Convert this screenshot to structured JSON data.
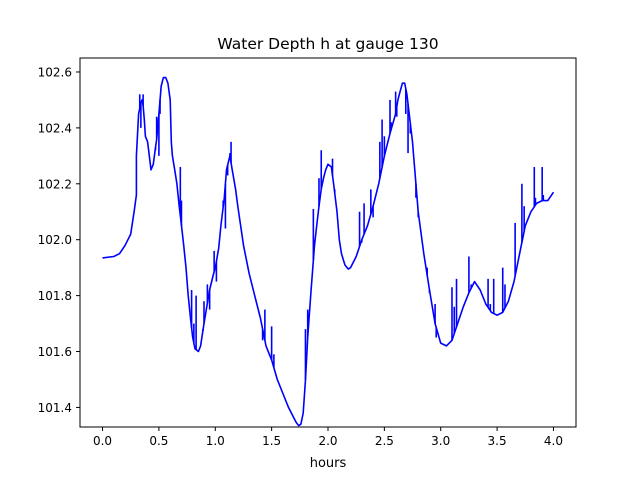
{
  "chart_data": {
    "type": "line",
    "title": "Water Depth h at gauge 130",
    "xlabel": "hours",
    "ylabel": "",
    "xlim": [
      -0.2,
      4.2
    ],
    "ylim": [
      101.33,
      102.65
    ],
    "xticks": [
      0.0,
      0.5,
      1.0,
      1.5,
      2.0,
      2.5,
      3.0,
      3.5,
      4.0
    ],
    "xtick_labels": [
      "0.0",
      "0.5",
      "1.0",
      "1.5",
      "2.0",
      "2.5",
      "3.0",
      "3.5",
      "4.0"
    ],
    "yticks": [
      101.4,
      101.6,
      101.8,
      102.0,
      102.2,
      102.4,
      102.6
    ],
    "ytick_labels": [
      "101.4",
      "101.6",
      "101.8",
      "102.0",
      "102.2",
      "102.4",
      "102.6"
    ],
    "grid": false,
    "line_color": "#0000ff",
    "series": [
      {
        "x": [
          0.0,
          0.1,
          0.15,
          0.2,
          0.25,
          0.28,
          0.3,
          0.3,
          0.32,
          0.34,
          0.35,
          0.36,
          0.37,
          0.38,
          0.4,
          0.43,
          0.45,
          0.47,
          0.48,
          0.5,
          0.52,
          0.54,
          0.56,
          0.58,
          0.6,
          0.61,
          0.62,
          0.64,
          0.66,
          0.68,
          0.7,
          0.72,
          0.74,
          0.76,
          0.78,
          0.8,
          0.82,
          0.85,
          0.87,
          0.9,
          0.92,
          0.95,
          0.98,
          1.0,
          1.03,
          1.05,
          1.08,
          1.1,
          1.13,
          1.15,
          1.18,
          1.2,
          1.25,
          1.3,
          1.35,
          1.4,
          1.45,
          1.5,
          1.55,
          1.6,
          1.65,
          1.7,
          1.72,
          1.74,
          1.76,
          1.78,
          1.8,
          1.82,
          1.85,
          1.88,
          1.9,
          1.92,
          1.94,
          1.96,
          1.98,
          2.0,
          2.03,
          2.05,
          2.08,
          2.1,
          2.12,
          2.15,
          2.18,
          2.2,
          2.25,
          2.3,
          2.35,
          2.4,
          2.45,
          2.5,
          2.55,
          2.6,
          2.62,
          2.64,
          2.66,
          2.68,
          2.7,
          2.72,
          2.75,
          2.8,
          2.85,
          2.9,
          2.95,
          3.0,
          3.05,
          3.1,
          3.15,
          3.2,
          3.25,
          3.3,
          3.35,
          3.4,
          3.45,
          3.5,
          3.55,
          3.6,
          3.65,
          3.7,
          3.75,
          3.8,
          3.85,
          3.9,
          3.95,
          4.0
        ],
        "y": [
          101.935,
          101.94,
          101.95,
          101.98,
          102.02,
          102.1,
          102.16,
          102.3,
          102.45,
          102.49,
          102.5,
          102.48,
          102.43,
          102.37,
          102.35,
          102.25,
          102.27,
          102.33,
          102.36,
          102.45,
          102.55,
          102.58,
          102.58,
          102.56,
          102.5,
          102.35,
          102.3,
          102.25,
          102.2,
          102.12,
          102.05,
          101.98,
          101.9,
          101.8,
          101.72,
          101.65,
          101.61,
          101.6,
          101.62,
          101.7,
          101.75,
          101.82,
          101.87,
          101.9,
          101.97,
          102.05,
          102.15,
          102.25,
          102.3,
          102.25,
          102.18,
          102.12,
          101.98,
          101.88,
          101.8,
          101.72,
          101.62,
          101.57,
          101.5,
          101.45,
          101.4,
          101.36,
          101.345,
          101.335,
          101.34,
          101.38,
          101.5,
          101.65,
          101.82,
          101.98,
          102.05,
          102.12,
          102.18,
          102.22,
          102.25,
          102.27,
          102.26,
          102.2,
          102.1,
          102.0,
          101.95,
          101.91,
          101.895,
          101.9,
          101.94,
          102.0,
          102.05,
          102.12,
          102.2,
          102.3,
          102.38,
          102.45,
          102.5,
          102.53,
          102.56,
          102.56,
          102.52,
          102.45,
          102.35,
          102.1,
          101.95,
          101.82,
          101.7,
          101.63,
          101.62,
          101.64,
          101.7,
          101.76,
          101.81,
          101.85,
          101.82,
          101.77,
          101.74,
          101.73,
          101.74,
          101.78,
          101.85,
          101.95,
          102.05,
          102.1,
          102.13,
          102.14,
          102.14,
          102.17
        ]
      }
    ],
    "spikes": [
      [
        0.33,
        102.52
      ],
      [
        0.34,
        102.4
      ],
      [
        0.36,
        102.52
      ],
      [
        0.47,
        102.32
      ],
      [
        0.48,
        102.44
      ],
      [
        0.5,
        102.3
      ],
      [
        0.51,
        102.45
      ],
      [
        0.69,
        102.26
      ],
      [
        0.7,
        102.14
      ],
      [
        0.79,
        101.82
      ],
      [
        0.81,
        101.7
      ],
      [
        0.83,
        101.8
      ],
      [
        0.89,
        101.68
      ],
      [
        0.9,
        101.78
      ],
      [
        0.93,
        101.84
      ],
      [
        0.95,
        101.75
      ],
      [
        0.99,
        101.96
      ],
      [
        1.01,
        101.85
      ],
      [
        1.07,
        102.14
      ],
      [
        1.09,
        102.04
      ],
      [
        1.11,
        102.23
      ],
      [
        1.13,
        102.31
      ],
      [
        1.14,
        102.35
      ],
      [
        1.42,
        101.64
      ],
      [
        1.44,
        101.75
      ],
      [
        1.5,
        101.69
      ],
      [
        1.52,
        101.59
      ],
      [
        1.8,
        101.68
      ],
      [
        1.82,
        101.75
      ],
      [
        1.87,
        102.11
      ],
      [
        1.88,
        102.0
      ],
      [
        1.92,
        102.22
      ],
      [
        1.94,
        102.32
      ],
      [
        2.04,
        102.29
      ],
      [
        2.06,
        102.18
      ],
      [
        2.28,
        102.1
      ],
      [
        2.3,
        101.99
      ],
      [
        2.32,
        102.13
      ],
      [
        2.38,
        102.18
      ],
      [
        2.4,
        102.08
      ],
      [
        2.46,
        102.35
      ],
      [
        2.48,
        102.43
      ],
      [
        2.5,
        102.37
      ],
      [
        2.55,
        102.5
      ],
      [
        2.56,
        102.42
      ],
      [
        2.6,
        102.53
      ],
      [
        2.61,
        102.44
      ],
      [
        2.69,
        102.45
      ],
      [
        2.71,
        102.31
      ],
      [
        2.73,
        102.38
      ],
      [
        2.78,
        102.15
      ],
      [
        2.8,
        102.08
      ],
      [
        2.88,
        101.9
      ],
      [
        2.9,
        101.81
      ],
      [
        2.95,
        101.77
      ],
      [
        2.96,
        101.65
      ],
      [
        3.1,
        101.83
      ],
      [
        3.12,
        101.76
      ],
      [
        3.14,
        101.86
      ],
      [
        3.25,
        101.94
      ],
      [
        3.27,
        101.84
      ],
      [
        3.42,
        101.86
      ],
      [
        3.44,
        101.77
      ],
      [
        3.47,
        101.86
      ],
      [
        3.55,
        101.9
      ],
      [
        3.57,
        101.84
      ],
      [
        3.66,
        102.06
      ],
      [
        3.72,
        102.2
      ],
      [
        3.74,
        102.12
      ],
      [
        3.83,
        102.26
      ],
      [
        3.84,
        102.15
      ],
      [
        3.9,
        102.26
      ],
      [
        3.91,
        102.16
      ]
    ]
  }
}
